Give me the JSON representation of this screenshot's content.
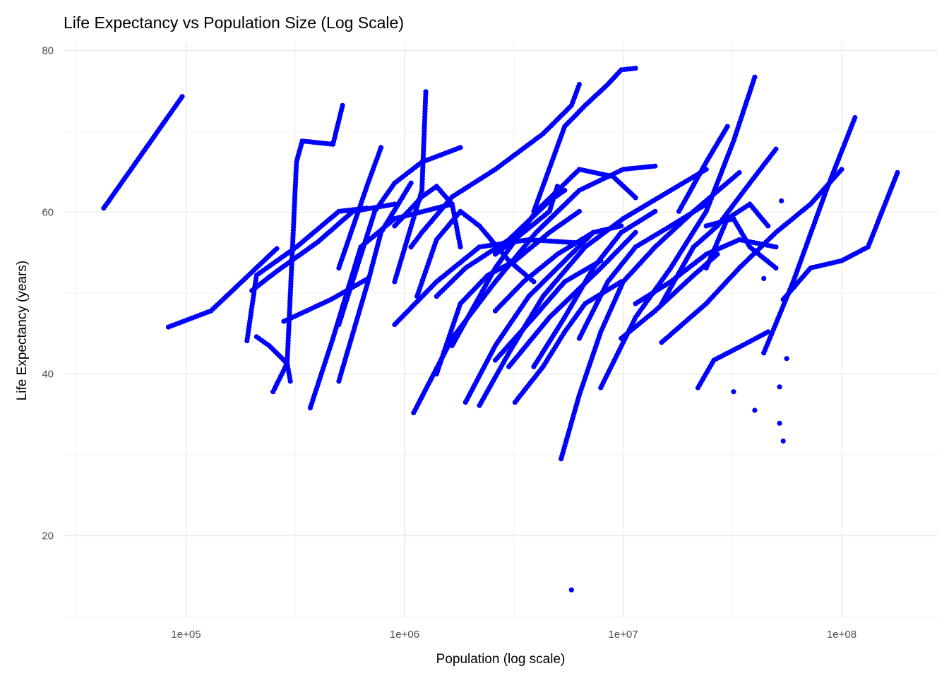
{
  "chart_data": {
    "type": "scatter",
    "title": "Life Expectancy vs Population Size (Log Scale)",
    "xlabel": "Population (log scale)",
    "ylabel": "Life Expectancy (years)",
    "x_scale": "log10",
    "xlim": [
      27500,
      275000000
    ],
    "ylim": [
      10,
      81
    ],
    "x_ticks": [
      {
        "value": 100000,
        "label": "1e+05"
      },
      {
        "value": 1000000,
        "label": "1e+06"
      },
      {
        "value": 10000000,
        "label": "1e+07"
      },
      {
        "value": 100000000,
        "label": "1e+08"
      }
    ],
    "y_ticks": [
      {
        "value": 20,
        "label": "20"
      },
      {
        "value": 40,
        "label": "40"
      },
      {
        "value": 60,
        "label": "60"
      },
      {
        "value": 80,
        "label": "80"
      }
    ],
    "grid": true,
    "point_color": "#0000ff",
    "trajectories": [
      [
        [
          42000.0,
          60.5
        ],
        [
          96000.0,
          74.3
        ]
      ],
      [
        [
          83000.0,
          45.8
        ],
        [
          130000.0,
          47.8
        ],
        [
          260000.0,
          55.5
        ]
      ],
      [
        [
          250000.0,
          37.8
        ],
        [
          290000.0,
          41.3
        ],
        [
          320000.0,
          66.2
        ],
        [
          340000.0,
          68.8
        ],
        [
          470000.0,
          68.4
        ],
        [
          520000.0,
          73.2
        ]
      ],
      [
        [
          190000.0,
          44.1
        ],
        [
          210000.0,
          52.2
        ],
        [
          320000.0,
          55.7
        ],
        [
          500000.0,
          60.1
        ],
        [
          670000.0,
          60.5
        ]
      ],
      [
        [
          210000.0,
          44.6
        ],
        [
          240000.0,
          43.5
        ],
        [
          290000.0,
          41.3
        ],
        [
          300000.0,
          39.1
        ]
      ],
      [
        [
          200000.0,
          50.3
        ],
        [
          260000.0,
          52.7
        ],
        [
          400000.0,
          56.3
        ],
        [
          580000.0,
          60.1
        ],
        [
          900000.0,
          61
        ]
      ],
      [
        [
          280000.0,
          46.5
        ],
        [
          460000.0,
          49.2
        ],
        [
          680000.0,
          51.8
        ]
      ],
      [
        [
          370000.0,
          35.8
        ],
        [
          470000.0,
          44.4
        ],
        [
          630000.0,
          55.7
        ],
        [
          900000.0,
          59.2
        ],
        [
          1650000.0,
          61
        ]
      ],
      [
        [
          500000.0,
          39.1
        ],
        [
          680000.0,
          51.4
        ],
        [
          780000.0,
          57.5
        ],
        [
          1070000.0,
          63.6
        ]
      ],
      [
        [
          500000.0,
          46.1
        ],
        [
          730000.0,
          60.1
        ],
        [
          900000.0,
          63.6
        ],
        [
          1200000.0,
          66.2
        ],
        [
          1800000.0,
          68
        ]
      ],
      [
        [
          500000.0,
          53.1
        ],
        [
          680000.0,
          63.6
        ],
        [
          780000.0,
          68
        ]
      ],
      [
        [
          1100000.0,
          35.2
        ],
        [
          1650000.0,
          44.4
        ],
        [
          2600000.0,
          51.4
        ],
        [
          4000000.0,
          57.5
        ],
        [
          6300000.0,
          62.7
        ],
        [
          10000000.0,
          65.3
        ],
        [
          14000000.0,
          65.7
        ]
      ],
      [
        [
          900000.0,
          51.4
        ],
        [
          1200000.0,
          62.7
        ],
        [
          1250000.0,
          74.9
        ]
      ],
      [
        [
          1070000.0,
          55.7
        ],
        [
          1200000.0,
          57.5
        ],
        [
          1650000.0,
          61.9
        ],
        [
          2600000.0,
          65.3
        ],
        [
          4300000.0,
          69.7
        ],
        [
          5800000.0,
          73.2
        ],
        [
          6300000.0,
          75.8
        ]
      ],
      [
        [
          3900000.0,
          60.1
        ],
        [
          5400000.0,
          70.6
        ],
        [
          6700000.0,
          73.2
        ],
        [
          8500000.0,
          75.8
        ],
        [
          9800000.0,
          77.6
        ],
        [
          11400000.0,
          77.8
        ]
      ],
      [
        [
          1650000.0,
          43.5
        ],
        [
          2600000.0,
          53.1
        ],
        [
          4000000.0,
          60.1
        ],
        [
          6300000.0,
          65.3
        ],
        [
          9000000.0,
          64.4
        ],
        [
          11400000.0,
          61.8
        ]
      ],
      [
        [
          2200000.0,
          36.1
        ],
        [
          3000000.0,
          42.6
        ],
        [
          4300000.0,
          49.6
        ],
        [
          6700000.0,
          55.7
        ],
        [
          10000000.0,
          59.2
        ],
        [
          16500000.0,
          62.7
        ],
        [
          24000000.0,
          65.3
        ]
      ],
      [
        [
          5200000.0,
          29.5
        ],
        [
          6300000.0,
          37.4
        ],
        [
          7900000.0,
          45.2
        ],
        [
          10000000.0,
          51.4
        ],
        [
          14000000.0,
          55.7
        ],
        [
          21000000.0,
          60.1
        ],
        [
          34000000.0,
          64.9
        ]
      ],
      [
        [
          7900000.0,
          38.3
        ],
        [
          11400000.0,
          47
        ],
        [
          16500000.0,
          53.1
        ],
        [
          24000000.0,
          60.1
        ],
        [
          32000000.0,
          68.8
        ],
        [
          40000000.0,
          76.7
        ]
      ],
      [
        [
          15000000.0,
          43.9
        ],
        [
          24000000.0,
          48.7
        ],
        [
          34000000.0,
          53.1
        ],
        [
          50000000.0,
          57.5
        ],
        [
          72000000.0,
          61
        ],
        [
          100000000.0,
          65.3
        ]
      ],
      [
        [
          54000000.0,
          49.2
        ],
        [
          72000000.0,
          53.1
        ],
        [
          100000000.0,
          54
        ],
        [
          132000000.0,
          55.7
        ],
        [
          180000000.0,
          64.9
        ]
      ],
      [
        [
          44000000.0,
          42.6
        ],
        [
          60000000.0,
          51.4
        ],
        [
          85000000.0,
          62.7
        ],
        [
          115000000.0,
          71.7
        ]
      ],
      [
        [
          22000000.0,
          38.3
        ],
        [
          26000000.0,
          41.7
        ],
        [
          35000000.0,
          43.5
        ],
        [
          46000000.0,
          45.2
        ]
      ],
      [
        [
          18000000.0,
          60.1
        ],
        [
          24000000.0,
          66.2
        ],
        [
          30000000.0,
          70.6
        ]
      ],
      [
        [
          15000000.0,
          48.7
        ],
        [
          21000000.0,
          55.7
        ],
        [
          27000000.0,
          58.3
        ],
        [
          38000000.0,
          63.6
        ],
        [
          50000000.0,
          67.8
        ]
      ],
      [
        [
          6300000.0,
          44.4
        ],
        [
          8500000.0,
          51.4
        ],
        [
          11400000.0,
          55.7
        ],
        [
          16500000.0,
          58.3
        ],
        [
          24000000.0,
          61
        ]
      ],
      [
        [
          3000000.0,
          40.9
        ],
        [
          4600000.0,
          47
        ],
        [
          7900000.0,
          53.1
        ],
        [
          11400000.0,
          57.5
        ]
      ],
      [
        [
          3200000.0,
          36.5
        ],
        [
          4300000.0,
          40.9
        ],
        [
          5400000.0,
          45.2
        ],
        [
          6700000.0,
          48.7
        ],
        [
          9800000.0,
          51.4
        ]
      ],
      [
        [
          1400000.0,
          40
        ],
        [
          1800000.0,
          48.7
        ],
        [
          2400000.0,
          52.2
        ],
        [
          3200000.0,
          54
        ],
        [
          4600000.0,
          57.5
        ],
        [
          6300000.0,
          60.1
        ]
      ],
      [
        [
          3900000.0,
          40.9
        ],
        [
          5400000.0,
          47
        ],
        [
          7300000.0,
          53.1
        ],
        [
          9800000.0,
          57.5
        ],
        [
          14000000.0,
          60.1
        ]
      ],
      [
        [
          2600000.0,
          47.8
        ],
        [
          3500000.0,
          51.4
        ],
        [
          5000000.0,
          54.8
        ],
        [
          7300000.0,
          57.5
        ],
        [
          9800000.0,
          58.3
        ]
      ],
      [
        [
          1140000.0,
          49.6
        ],
        [
          1400000.0,
          56.6
        ],
        [
          1800000.0,
          60.1
        ],
        [
          2200000.0,
          58.3
        ],
        [
          3000000.0,
          54
        ],
        [
          3900000.0,
          51.4
        ]
      ],
      [
        [
          900000.0,
          46.1
        ],
        [
          1400000.0,
          51.4
        ],
        [
          2200000.0,
          55.7
        ],
        [
          3700000.0,
          56.6
        ],
        [
          6300000.0,
          56.2
        ]
      ],
      [
        [
          2600000.0,
          41.7
        ],
        [
          3900000.0,
          47
        ],
        [
          5400000.0,
          51.4
        ],
        [
          7900000.0,
          54
        ]
      ],
      [
        [
          11400000.0,
          48.7
        ],
        [
          16500000.0,
          51.4
        ],
        [
          24000000.0,
          54.8
        ],
        [
          34000000.0,
          56.6
        ],
        [
          50000000.0,
          55.7
        ]
      ],
      [
        [
          9800000.0,
          44.4
        ],
        [
          14000000.0,
          47.8
        ],
        [
          21000000.0,
          52.2
        ],
        [
          27000000.0,
          54.8
        ]
      ],
      [
        [
          24000000.0,
          58.3
        ],
        [
          32000000.0,
          59.2
        ],
        [
          38000000.0,
          55.7
        ],
        [
          50000000.0,
          53.1
        ]
      ],
      [
        [
          1900000.0,
          36.5
        ],
        [
          2600000.0,
          43.5
        ],
        [
          3700000.0,
          49.6
        ],
        [
          5400000.0,
          54
        ],
        [
          7300000.0,
          57.5
        ]
      ],
      [
        [
          1400000.0,
          49.6
        ],
        [
          1900000.0,
          53.1
        ],
        [
          3000000.0,
          56.6
        ],
        [
          4600000.0,
          61.4
        ],
        [
          5400000.0,
          62.7
        ]
      ],
      [
        [
          24000000.0,
          53.1
        ],
        [
          30000000.0,
          59.2
        ],
        [
          38000000.0,
          61
        ],
        [
          46000000.0,
          58.3
        ]
      ],
      [
        [
          900000.0,
          58.3
        ],
        [
          1200000.0,
          61.9
        ],
        [
          1400000.0,
          63.2
        ],
        [
          1650000.0,
          61
        ],
        [
          1800000.0,
          55.7
        ]
      ],
      [
        [
          2600000.0,
          54.8
        ],
        [
          3500000.0,
          57.5
        ],
        [
          4600000.0,
          60.1
        ],
        [
          5000000.0,
          63.2
        ]
      ],
      [
        [
          5800000.0,
          13.3
        ]
      ],
      [
        [
          52000000.0,
          33.9
        ]
      ],
      [
        [
          54000000.0,
          31.7
        ]
      ],
      [
        [
          40000000.0,
          35.5
        ]
      ],
      [
        [
          52000000.0,
          38.4
        ]
      ],
      [
        [
          56000000.0,
          41.9
        ]
      ],
      [
        [
          32000000.0,
          37.8
        ]
      ],
      [
        [
          44000000.0,
          51.8
        ]
      ],
      [
        [
          53000000.0,
          61.4
        ]
      ]
    ]
  }
}
